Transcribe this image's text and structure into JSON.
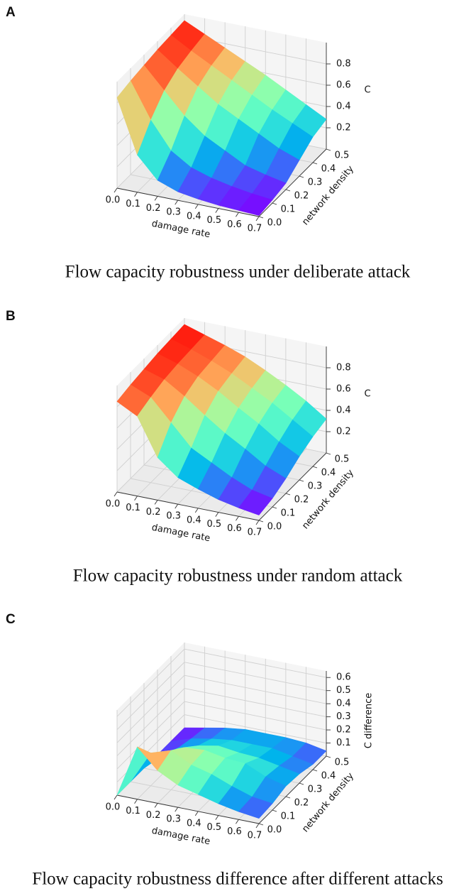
{
  "chart_data": [
    {
      "type": "surface",
      "label": "A",
      "title": "Flow capacity robustness under deliberate attack",
      "xlabel": "damage rate",
      "ylabel": "network density",
      "zlabel": "C",
      "colormap": "rainbow",
      "x": [
        0,
        0.1,
        0.2,
        0.3,
        0.4,
        0.5,
        0.6,
        0.7
      ],
      "y": [
        0,
        0.1,
        0.2,
        0.3,
        0.4,
        0.5
      ],
      "values": [
        [
          0.85,
          0.35,
          0.15,
          0.08,
          0.05,
          0.03,
          0.02,
          0.01
        ],
        [
          0.88,
          0.55,
          0.3,
          0.18,
          0.12,
          0.08,
          0.05,
          0.03
        ],
        [
          0.9,
          0.7,
          0.5,
          0.35,
          0.25,
          0.15,
          0.1,
          0.06
        ],
        [
          0.92,
          0.78,
          0.65,
          0.52,
          0.42,
          0.32,
          0.22,
          0.15
        ],
        [
          0.93,
          0.82,
          0.72,
          0.62,
          0.52,
          0.42,
          0.33,
          0.24
        ],
        [
          0.94,
          0.85,
          0.76,
          0.67,
          0.58,
          0.48,
          0.38,
          0.28
        ]
      ],
      "xlim": [
        0,
        0.7
      ],
      "ylim": [
        0,
        0.5
      ],
      "zlim": [
        0,
        1
      ],
      "xticks": [
        {
          "value": 0,
          "label": "0.0"
        },
        0.1,
        0.2,
        0.3,
        0.4,
        0.5,
        0.6,
        0.7
      ],
      "yticks": [
        {
          "value": 0,
          "label": "0.0"
        },
        0.1,
        0.2,
        0.3,
        0.4,
        0.5
      ],
      "zticks": [
        0.2,
        0.4,
        0.6,
        0.8
      ]
    },
    {
      "type": "surface",
      "label": "B",
      "title": "Flow capacity robustness under random attack",
      "xlabel": "damage rate",
      "ylabel": "network density",
      "zlabel": "C",
      "colormap": "rainbow",
      "x": [
        0,
        0.1,
        0.2,
        0.3,
        0.4,
        0.5,
        0.6,
        0.7
      ],
      "y": [
        0,
        0.1,
        0.2,
        0.3,
        0.4,
        0.5
      ],
      "values": [
        [
          0.85,
          0.75,
          0.4,
          0.25,
          0.18,
          0.12,
          0.08,
          0.05
        ],
        [
          0.88,
          0.8,
          0.6,
          0.4,
          0.3,
          0.2,
          0.12,
          0.08
        ],
        [
          0.9,
          0.84,
          0.72,
          0.58,
          0.45,
          0.34,
          0.22,
          0.14
        ],
        [
          0.92,
          0.86,
          0.78,
          0.68,
          0.56,
          0.45,
          0.32,
          0.22
        ],
        [
          0.93,
          0.87,
          0.8,
          0.72,
          0.62,
          0.52,
          0.4,
          0.28
        ],
        [
          0.94,
          0.88,
          0.82,
          0.75,
          0.66,
          0.56,
          0.45,
          0.32
        ]
      ],
      "xlim": [
        0,
        0.7
      ],
      "ylim": [
        0,
        0.5
      ],
      "zlim": [
        0,
        1
      ],
      "xticks": [
        {
          "value": 0,
          "label": "0.0"
        },
        0.1,
        0.2,
        0.3,
        0.4,
        0.5,
        0.6,
        0.7
      ],
      "yticks": [
        {
          "value": 0,
          "label": "0.0"
        },
        0.1,
        0.2,
        0.3,
        0.4,
        0.5
      ],
      "zticks": [
        0.2,
        0.4,
        0.6,
        0.8
      ]
    },
    {
      "type": "surface",
      "label": "C",
      "title": "Flow capacity robustness difference after different attacks",
      "xlabel": "damage rate",
      "ylabel": "network density",
      "zlabel": "C difference",
      "colormap": "rainbow",
      "x": [
        0,
        0.1,
        0.2,
        0.3,
        0.4,
        0.5,
        0.6,
        0.7
      ],
      "y": [
        0,
        0.1,
        0.2,
        0.3,
        0.4,
        0.5
      ],
      "values": [
        [
          0.0,
          0.4,
          0.25,
          0.17,
          0.13,
          0.09,
          0.06,
          0.04
        ],
        [
          0.0,
          0.25,
          0.3,
          0.22,
          0.18,
          0.12,
          0.07,
          0.05
        ],
        [
          0.0,
          0.14,
          0.22,
          0.23,
          0.2,
          0.19,
          0.12,
          0.08
        ],
        [
          0.0,
          0.08,
          0.13,
          0.16,
          0.14,
          0.13,
          0.1,
          0.07
        ],
        [
          0.0,
          0.05,
          0.08,
          0.1,
          0.1,
          0.1,
          0.07,
          0.04
        ],
        [
          0.0,
          0.03,
          0.06,
          0.08,
          0.08,
          0.08,
          0.07,
          0.04
        ]
      ],
      "xlim": [
        0,
        0.7
      ],
      "ylim": [
        0,
        0.5
      ],
      "zlim": [
        0,
        0.65
      ],
      "xticks": [
        {
          "value": 0,
          "label": "0.0"
        },
        0.1,
        0.2,
        0.3,
        0.4,
        0.5,
        0.6,
        0.7
      ],
      "yticks": [
        {
          "value": 0,
          "label": "0.0"
        },
        0.1,
        0.2,
        0.3,
        0.4,
        0.5
      ],
      "zticks": [
        0.1,
        0.2,
        0.3,
        0.4,
        0.5,
        0.6
      ]
    }
  ]
}
